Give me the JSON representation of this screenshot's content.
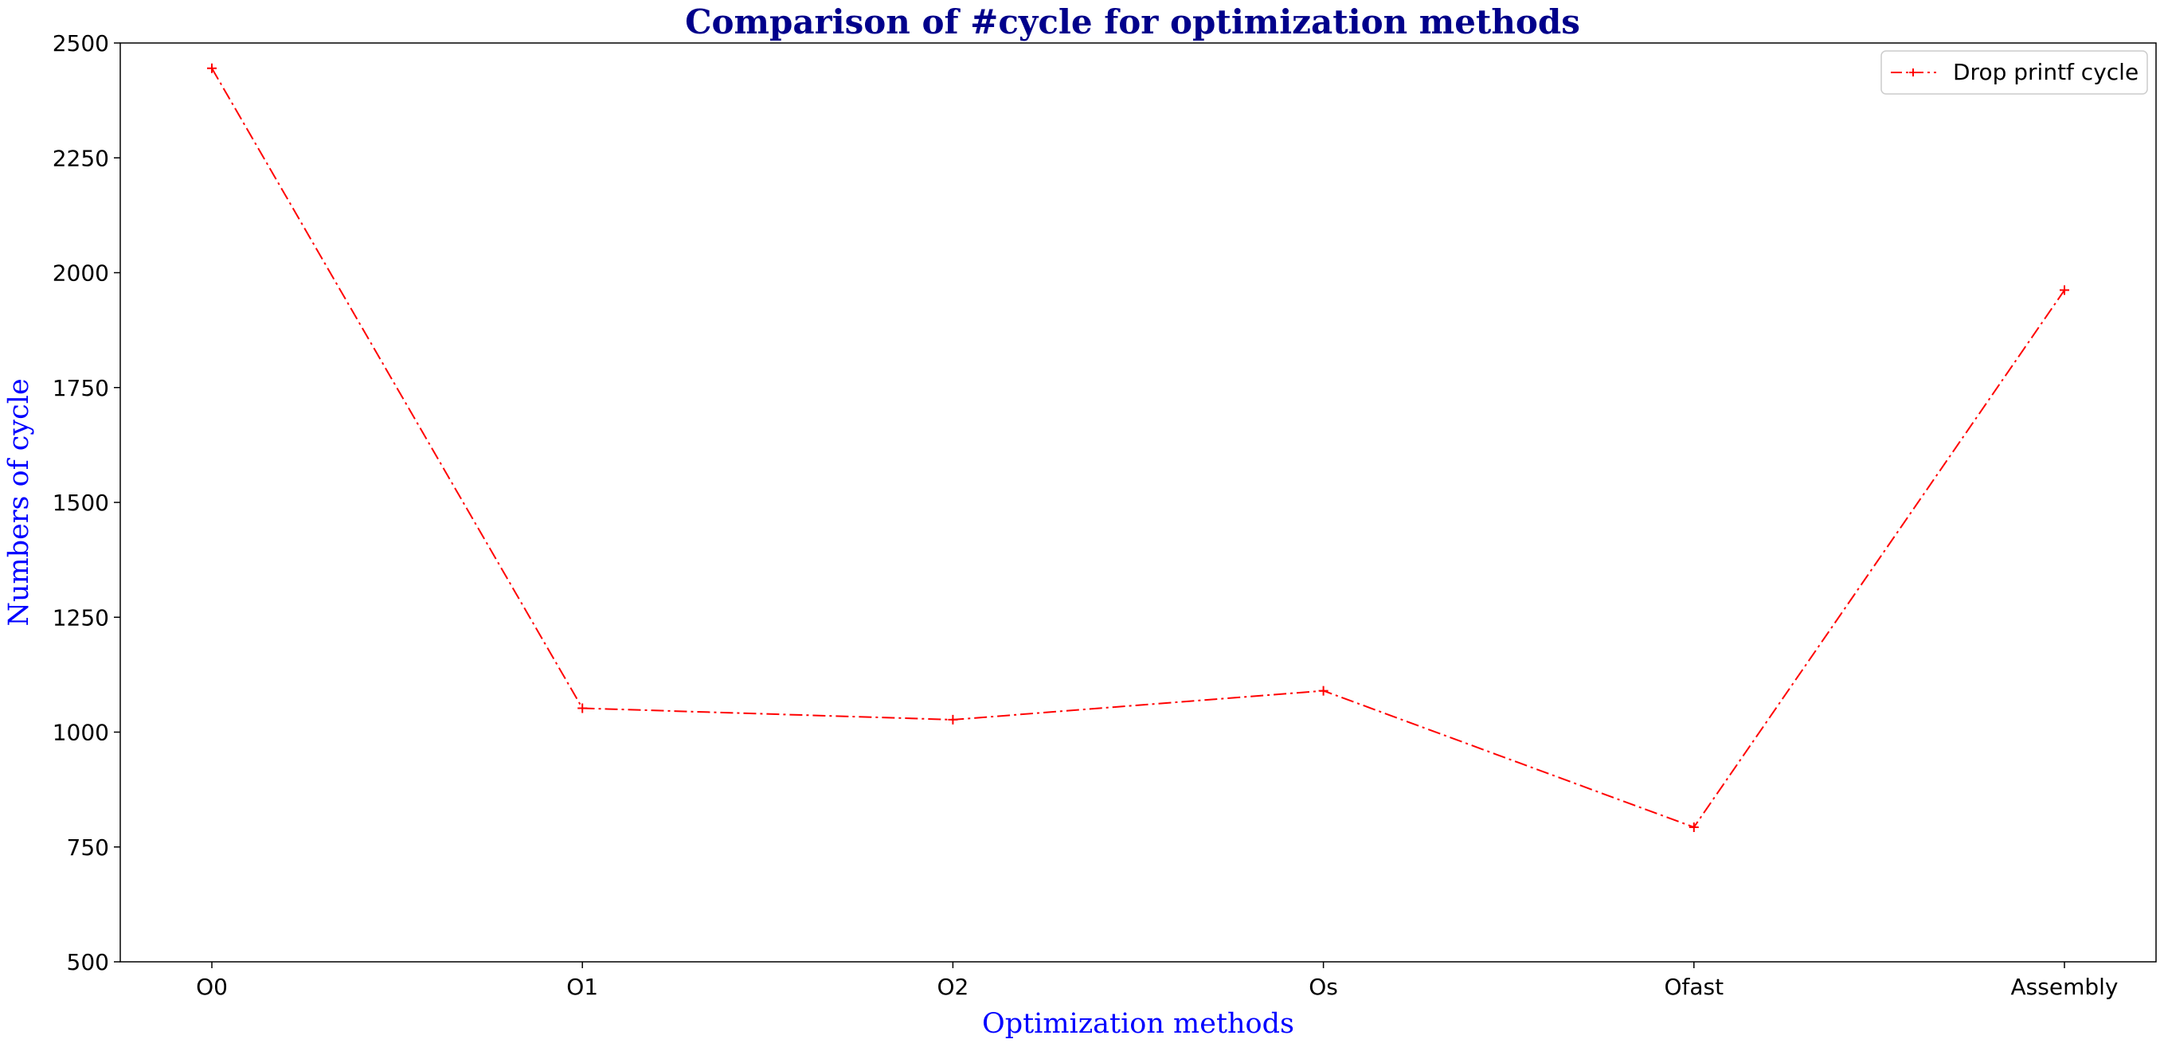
{
  "chart_data": {
    "type": "line",
    "title": "Comparison of #cycle for optimization methods",
    "xlabel": "Optimization methods",
    "ylabel": "Numbers of cycle",
    "categories": [
      "O0",
      "O1",
      "O2",
      "Os",
      "Ofast",
      "Assembly"
    ],
    "ylim": [
      500,
      2500
    ],
    "yticks": [
      500,
      750,
      1000,
      1250,
      1500,
      1750,
      2000,
      2250,
      2500
    ],
    "ytick_labels": [
      "500",
      "750",
      "1000",
      "1250",
      "1500",
      "1750",
      "2000",
      "2250",
      "2500"
    ],
    "series": [
      {
        "name": "Drop printf cycle",
        "values": [
          2445,
          1052,
          1027,
          1090,
          793,
          1962
        ],
        "color": "#ff0000",
        "line_style": "dash-dot",
        "marker": "plus"
      }
    ],
    "grid": false,
    "legend_position": "top-right",
    "title_color": "#00008b",
    "axis_label_color": "#0000ff"
  }
}
